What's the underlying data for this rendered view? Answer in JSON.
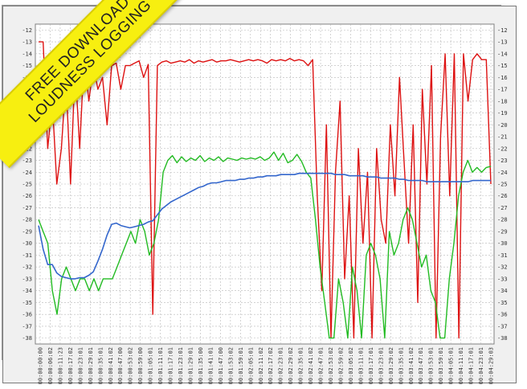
{
  "banner": {
    "line1": "FREE DOWNLOAD",
    "line2": "LOUDNESS LOGGING"
  },
  "chart_data": {
    "type": "line",
    "ylim": [
      -38.5,
      -11.5
    ],
    "grid": true,
    "y_ticks": [
      -12,
      -13,
      -14,
      -15,
      -16,
      -17,
      -18,
      -19,
      -20,
      -21,
      -22,
      -23,
      -24,
      -25,
      -26,
      -27,
      -28,
      -29,
      -30,
      -31,
      -32,
      -33,
      -34,
      -35,
      -36,
      -37,
      -38
    ],
    "x_ticks": [
      "00:00:00:00",
      "00:00:06:02",
      "00:00:11:23",
      "00:00:17:02",
      "00:00:23:01",
      "00:00:29:01",
      "00:00:35:01",
      "00:00:41:02",
      "00:00:47:00",
      "00:00:53:02",
      "00:00:59:00",
      "00:01:05:01",
      "00:01:11:01",
      "00:01:17:01",
      "00:01:23:01",
      "00:01:29:01",
      "00:01:35:00",
      "00:01:41:01",
      "00:01:47:00",
      "00:01:53:02",
      "00:01:59:01",
      "00:02:05:01",
      "00:02:11:02",
      "00:02:17:02",
      "00:02:23:01",
      "00:02:29:02",
      "00:02:35:01",
      "00:02:41:02",
      "00:02:47:01",
      "00:02:53:02",
      "00:02:59:02",
      "00:03:05:02",
      "00:03:11:01",
      "00:03:17:01",
      "00:03:23:01",
      "00:03:29:02",
      "00:03:35:01",
      "00:03:41:02",
      "00:03:47:01",
      "00:03:53:01",
      "00:03:59:01",
      "00:04:05:01",
      "00:04:11:01",
      "00:04:17:01",
      "00:04:23:01",
      "00:04:29:03"
    ],
    "series": [
      {
        "color": "#dd1111",
        "values": [
          -13,
          -13,
          -22,
          -18,
          -25,
          -22,
          -16,
          -25,
          -15,
          -22,
          -14,
          -18,
          -15,
          -17,
          -16,
          -20,
          -15,
          -14.8,
          -17,
          -15,
          -15,
          -14.8,
          -14.6,
          -16,
          -14.9,
          -36,
          -15,
          -14.7,
          -14.6,
          -14.8,
          -14.7,
          -14.6,
          -14.7,
          -14.5,
          -14.8,
          -14.6,
          -14.7,
          -14.6,
          -14.5,
          -14.7,
          -14.6,
          -14.6,
          -14.5,
          -14.6,
          -14.7,
          -14.6,
          -14.5,
          -14.6,
          -14.5,
          -14.6,
          -14.8,
          -14.5,
          -14.6,
          -14.5,
          -14.6,
          -14.4,
          -14.6,
          -14.5,
          -14.6,
          -15,
          -14.5,
          -26,
          -34,
          -20,
          -38,
          -24,
          -18,
          -33,
          -26,
          -38,
          -22,
          -30,
          -24,
          -38,
          -22,
          -28,
          -30,
          -20,
          -26,
          -16,
          -23,
          -30,
          -20,
          -35,
          -17,
          -25,
          -15,
          -38,
          -21,
          -14,
          -26,
          -14,
          -38,
          -14,
          -18,
          -14.5,
          -14,
          -14.5,
          -14.5,
          -25
        ]
      },
      {
        "color": "#22bb22",
        "values": [
          -28,
          -29,
          -30,
          -34,
          -36,
          -33,
          -32,
          -33,
          -34,
          -33,
          -33,
          -34,
          -33,
          -34,
          -33,
          -33,
          -33,
          -32,
          -31,
          -30,
          -29,
          -30,
          -28,
          -29,
          -31,
          -30,
          -28,
          -24,
          -23,
          -22.6,
          -23.2,
          -22.7,
          -23.1,
          -22.8,
          -23,
          -22.6,
          -23.1,
          -22.8,
          -23,
          -22.7,
          -23.1,
          -22.8,
          -22.9,
          -23,
          -22.8,
          -22.9,
          -22.8,
          -22.9,
          -22.7,
          -23,
          -22.8,
          -22.3,
          -23,
          -22.4,
          -23.2,
          -23,
          -22.5,
          -23.1,
          -24,
          -24.5,
          -28,
          -32,
          -35,
          -38,
          -38,
          -33,
          -35,
          -38,
          -32,
          -34,
          -38,
          -31,
          -30,
          -31,
          -33,
          -38,
          -29,
          -31,
          -30,
          -28,
          -27,
          -28,
          -30,
          -32,
          -31,
          -34,
          -35,
          -38,
          -38,
          -33,
          -30,
          -26,
          -24,
          -23,
          -24,
          -23.6,
          -24,
          -23.6,
          -23.5
        ]
      },
      {
        "color": "#3366cc",
        "values": [
          -28.5,
          -30.5,
          -31.8,
          -31.8,
          -32.5,
          -32.8,
          -32.9,
          -33,
          -33,
          -32.9,
          -32.9,
          -32.7,
          -32.4,
          -31.5,
          -30.5,
          -29.3,
          -28.4,
          -28.3,
          -28.5,
          -28.6,
          -28.7,
          -28.6,
          -28.5,
          -28.4,
          -28.2,
          -28.1,
          -27.6,
          -27.1,
          -26.8,
          -26.5,
          -26.3,
          -26.1,
          -25.9,
          -25.7,
          -25.5,
          -25.3,
          -25.2,
          -25.0,
          -24.9,
          -24.9,
          -24.8,
          -24.7,
          -24.7,
          -24.7,
          -24.6,
          -24.6,
          -24.5,
          -24.5,
          -24.4,
          -24.4,
          -24.3,
          -24.3,
          -24.3,
          -24.2,
          -24.2,
          -24.2,
          -24.2,
          -24.1,
          -24.1,
          -24.1,
          -24.1,
          -24.1,
          -24.1,
          -24.1,
          -24.1,
          -24.2,
          -24.2,
          -24.2,
          -24.3,
          -24.3,
          -24.3,
          -24.3,
          -24.4,
          -24.4,
          -24.4,
          -24.5,
          -24.5,
          -24.5,
          -24.5,
          -24.6,
          -24.6,
          -24.7,
          -24.7,
          -24.7,
          -24.7,
          -24.8,
          -24.8,
          -24.8,
          -24.8,
          -24.8,
          -24.8,
          -24.8,
          -24.8,
          -24.8,
          -24.8,
          -24.7,
          -24.7,
          -24.7,
          -24.7,
          -24.7
        ]
      }
    ]
  }
}
